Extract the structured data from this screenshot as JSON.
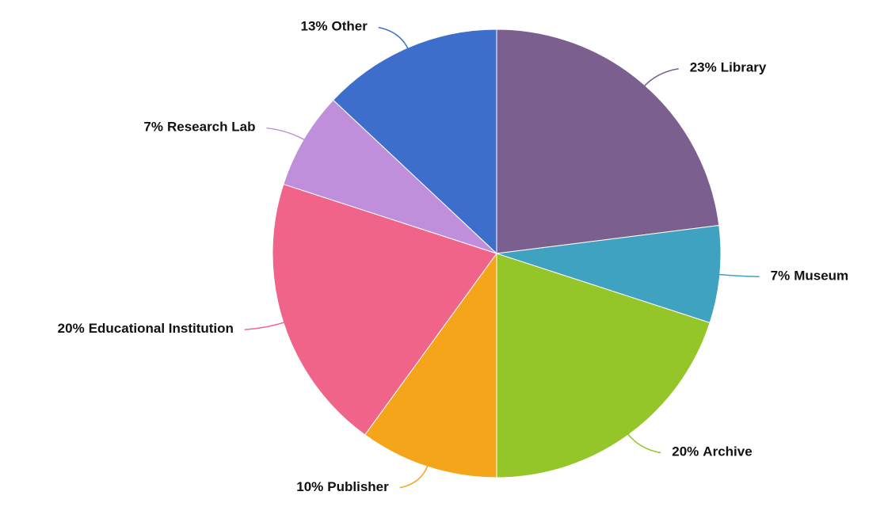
{
  "chart_data": {
    "type": "pie",
    "categories": [
      "Library",
      "Museum",
      "Archive",
      "Publisher",
      "Educational Institution",
      "Research Lab",
      "Other"
    ],
    "values": [
      23,
      7,
      20,
      10,
      20,
      7,
      13
    ],
    "value_labels": [
      "23%",
      "7%",
      "20%",
      "10%",
      "20%",
      "7%",
      "13%"
    ],
    "colors": [
      "#7b5f8f",
      "#3fa2c0",
      "#94c62a",
      "#f4a519",
      "#f0648a",
      "#bf8fdb",
      "#3d6ecc"
    ]
  }
}
